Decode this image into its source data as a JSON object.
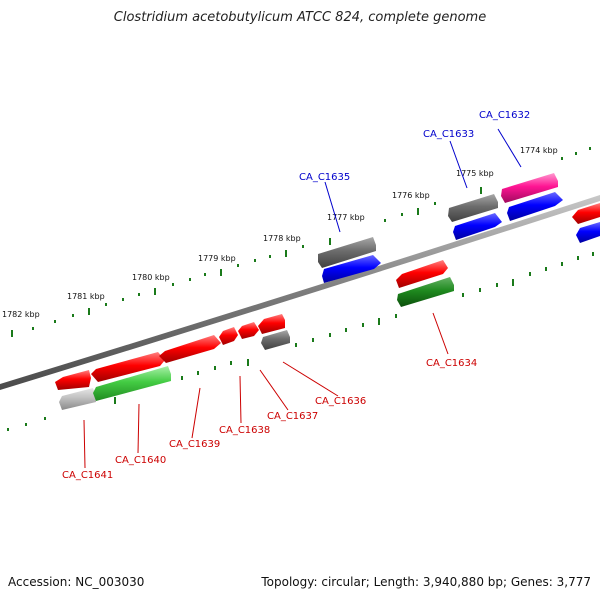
{
  "title": "Clostridium acetobutylicum ATCC 824, complete genome",
  "footer": {
    "accession": "Accession: NC_003030",
    "topology": "Topology: circular; Length: 3,940,880 bp; Genes: 3,777"
  },
  "colors": {
    "backbone": "#808080",
    "tick": "#1a7a1a",
    "label_top": "#0000cc",
    "label_bottom": "#cc0000"
  },
  "scale_labels": [
    "1782 kbp",
    "1781 kbp",
    "1780 kbp",
    "1779 kbp",
    "1778 kbp",
    "1777 kbp",
    "1776 kbp",
    "1775 kbp",
    "1774 kbp"
  ],
  "gene_labels": [
    "CA_C1632",
    "CA_C1633",
    "CA_C1634",
    "CA_C1635",
    "CA_C1636",
    "CA_C1637",
    "CA_C1638",
    "CA_C1639",
    "CA_C1640",
    "CA_C1641"
  ]
}
